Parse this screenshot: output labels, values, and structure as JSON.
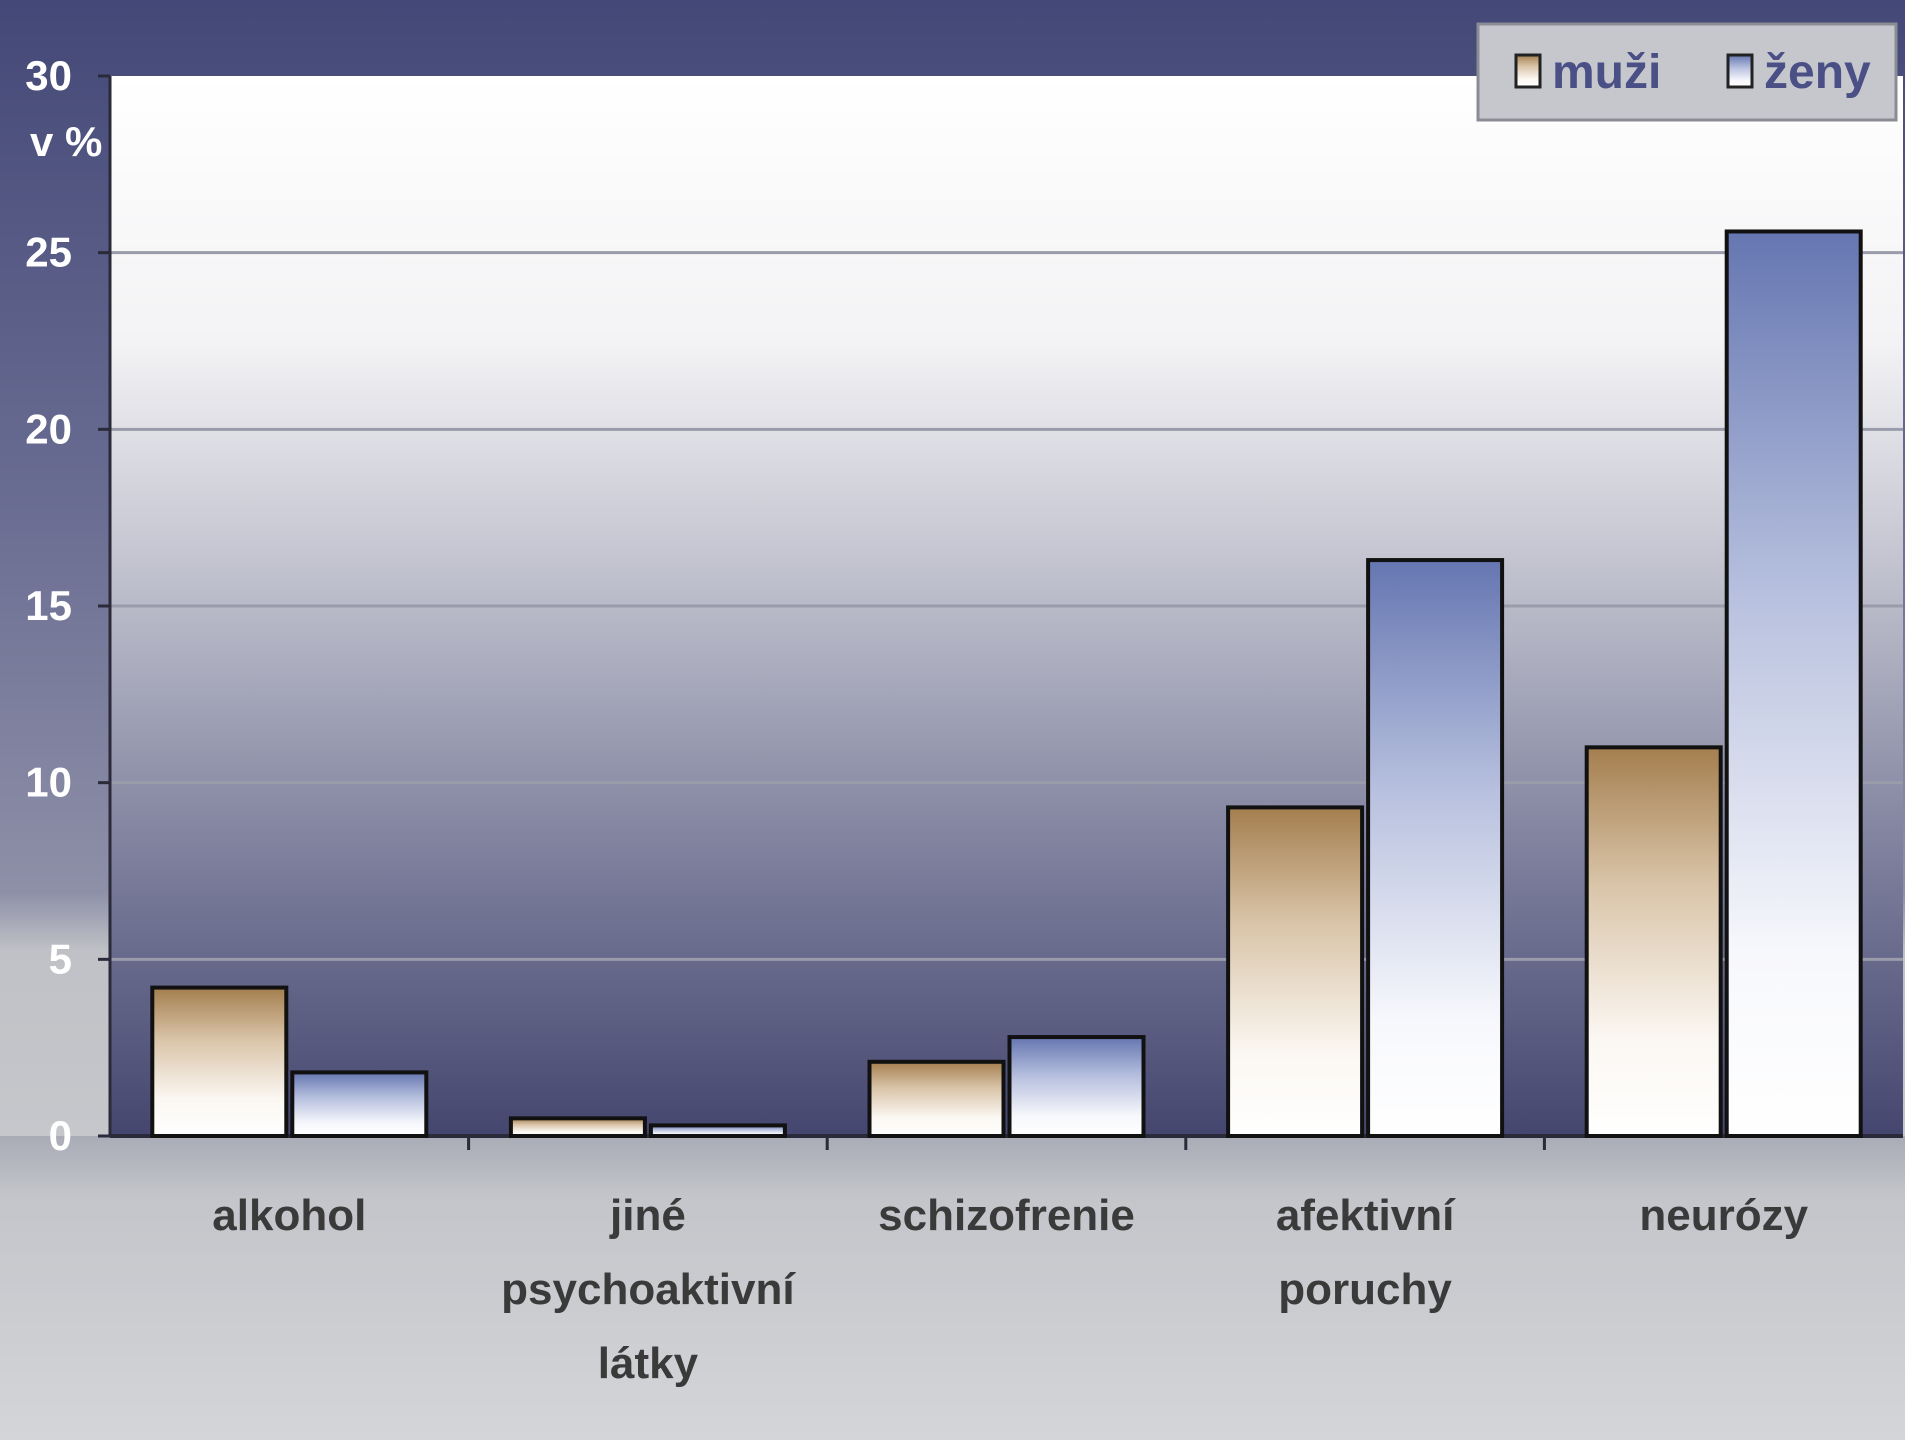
{
  "chart_data": {
    "type": "bar",
    "ylabel": "v %",
    "ylim": [
      0,
      30
    ],
    "yticks": [
      "0",
      "5",
      "10",
      "15",
      "20",
      "25",
      "30"
    ],
    "categories": [
      [
        "alkohol"
      ],
      [
        "jiné",
        "psychoaktivní",
        "látky"
      ],
      [
        "schizofrenie"
      ],
      [
        "afektivní",
        "poruchy"
      ],
      [
        "neurózy"
      ]
    ],
    "series": [
      {
        "name": "muži",
        "values": [
          4.2,
          0.5,
          2.1,
          9.3,
          11.0
        ]
      },
      {
        "name": "ženy",
        "values": [
          1.8,
          0.3,
          2.8,
          16.3,
          25.6
        ]
      }
    ],
    "grid": true,
    "legend": "top-right"
  },
  "colors": {
    "frame": "#4d507d",
    "frame_light": "#8e90a8",
    "plot_top": "#ffffff",
    "plot_mid": "#b8b9c8",
    "plot_bottom": "#4a4c76",
    "bottom_area": "#c9cbcf",
    "muzi_top": "#a47e4e",
    "muzi_bottom": "#ffffff",
    "zeny_top": "#6e7fb8",
    "zeny_bottom": "#ffffff",
    "gridline": "#9a9bab"
  }
}
